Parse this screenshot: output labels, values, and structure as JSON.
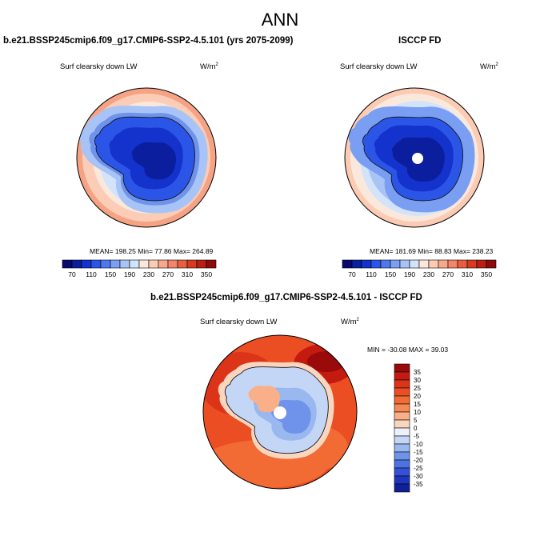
{
  "page": {
    "title": "ANN"
  },
  "chart_data": [
    {
      "type": "heatmap",
      "projection": "south-polar-stereographic",
      "title": "b.e21.BSSP245cmip6.f09_g17.CMIP6-SSP2-4.5.101 (yrs 2075-2099)",
      "variable": "Surf clearsky down LW",
      "units_base": "W/m",
      "units_exp": "2",
      "stats": "MEAN= 198.25  Min=  77.86  Max= 264.89",
      "mean": 198.25,
      "min": 77.86,
      "max": 264.89,
      "colorbar": {
        "levels": [
          "70",
          "110",
          "150",
          "190",
          "230",
          "270",
          "310",
          "350"
        ],
        "colors": [
          "#08086e",
          "#0a1e9e",
          "#1432cc",
          "#2b55e6",
          "#5078ee",
          "#7a9ef2",
          "#a8c4f7",
          "#d2e3fa",
          "#fbe8dc",
          "#fccbb3",
          "#f9a98a",
          "#f4846a",
          "#ea5e40",
          "#d63a20",
          "#b81e14",
          "#8c0a0a"
        ]
      }
    },
    {
      "type": "heatmap",
      "projection": "south-polar-stereographic",
      "title": "ISCCP FD",
      "variable": "Surf clearsky down LW",
      "units_base": "W/m",
      "units_exp": "2",
      "stats": "MEAN= 181.69  Min=  88.83  Max= 238.23",
      "mean": 181.69,
      "min": 88.83,
      "max": 238.23,
      "colorbar": {
        "levels": [
          "70",
          "110",
          "150",
          "190",
          "230",
          "270",
          "310",
          "350"
        ],
        "colors": [
          "#08086e",
          "#0a1e9e",
          "#1432cc",
          "#2b55e6",
          "#5078ee",
          "#7a9ef2",
          "#a8c4f7",
          "#d2e3fa",
          "#fbe8dc",
          "#fccbb3",
          "#f9a98a",
          "#f4846a",
          "#ea5e40",
          "#d63a20",
          "#b81e14",
          "#8c0a0a"
        ]
      }
    },
    {
      "type": "heatmap",
      "projection": "south-polar-stereographic",
      "title": "b.e21.BSSP245cmip6.f09_g17.CMIP6-SSP2-4.5.101 - ISCCP FD",
      "variable": "Surf clearsky down LW",
      "units_base": "W/m",
      "units_exp": "2",
      "stats": "MIN = -30.08 MAX =  39.03",
      "min": -30.08,
      "max": 39.03,
      "colorbar": {
        "levels": [
          "35",
          "30",
          "25",
          "20",
          "15",
          "10",
          "5",
          "0",
          "-5",
          "-10",
          "-15",
          "-20",
          "-25",
          "-30",
          "-35"
        ],
        "colors": [
          "#9a0a0a",
          "#c41a10",
          "#dc3418",
          "#ec4e24",
          "#f26a34",
          "#f58a56",
          "#f9b088",
          "#fbd6bf",
          "#eef1fb",
          "#c4d6f6",
          "#9ab8f0",
          "#6f93ea",
          "#4e72e2",
          "#3452d6",
          "#1f35bd",
          "#10209a"
        ]
      }
    }
  ]
}
